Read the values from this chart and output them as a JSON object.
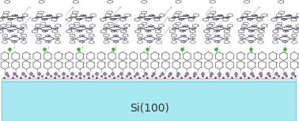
{
  "title": "Si(100)",
  "title_fontsize": 10,
  "title_color": "#333333",
  "background_color": "#ffffff",
  "slab_color": "#a8e8f0",
  "slab_edge_color": "#70c8d8",
  "fig_width": 3.78,
  "fig_height": 1.53,
  "dpi": 100,
  "si_atom_color": "#9080b8",
  "o_atom_color": "#cc2222",
  "cl_atom_color": "#22bb22",
  "c_atom_color": "#555555",
  "n_atom_color": "#2244cc",
  "h_atom_color": "#cccccc",
  "bond_color": "#888888",
  "gray_atom_color": "#aaaaaa"
}
